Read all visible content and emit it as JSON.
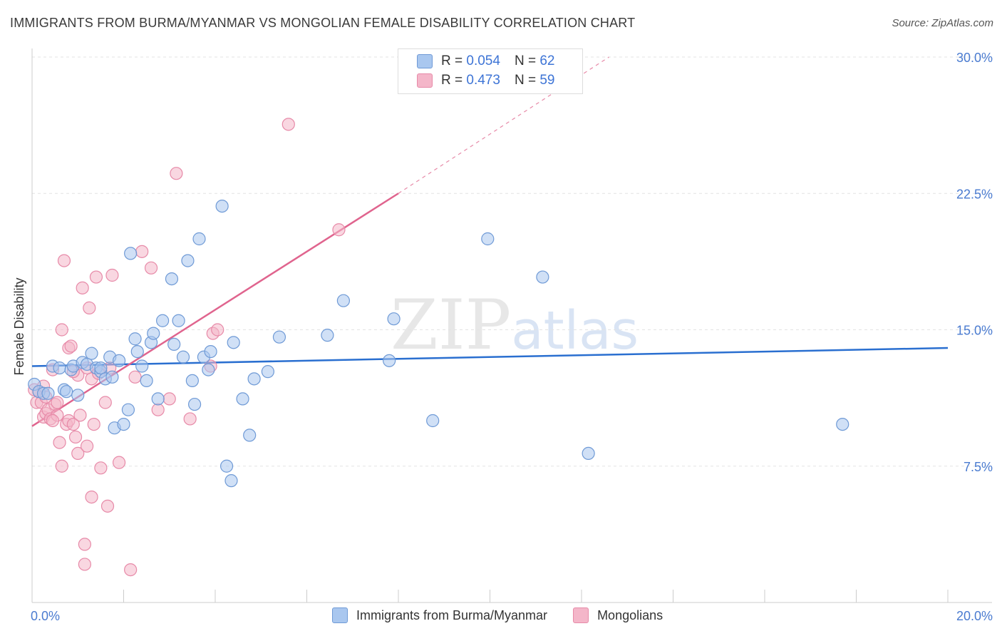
{
  "title": "IMMIGRANTS FROM BURMA/MYANMAR VS MONGOLIAN FEMALE DISABILITY CORRELATION CHART",
  "source": "Source: ZipAtlas.com",
  "watermark": {
    "zip": "ZIP",
    "atlas": "atlas"
  },
  "legend": {
    "rows": [
      {
        "r_label": "R = ",
        "r_value": "0.054",
        "n_label": "N = ",
        "n_value": "62"
      },
      {
        "r_label": "R = ",
        "r_value": "0.473",
        "n_label": "N = ",
        "n_value": "59"
      }
    ]
  },
  "bottom_legend": {
    "series1": "Immigrants from Burma/Myanmar",
    "series2": "Mongolians"
  },
  "colors": {
    "blue_fill": "#a9c7ef",
    "blue_stroke": "#6f9ad6",
    "blue_line": "#2a6fd0",
    "pink_fill": "#f4b6c9",
    "pink_stroke": "#e78aa8",
    "pink_line": "#e0648e",
    "grid": "#e3e3e3",
    "axis": "#cccccc"
  },
  "chart_data": {
    "type": "scatter",
    "title": "IMMIGRANTS FROM BURMA/MYANMAR VS MONGOLIAN FEMALE DISABILITY CORRELATION CHART",
    "xlabel": "",
    "ylabel": "Female Disability",
    "xlim": [
      0,
      20
    ],
    "ylim": [
      0,
      30
    ],
    "x_tick_labels": [
      "0.0%",
      "20.0%"
    ],
    "y_ticks": [
      7.5,
      15.0,
      22.5,
      30.0
    ],
    "y_tick_labels": [
      "7.5%",
      "15.0%",
      "22.5%",
      "30.0%"
    ],
    "series": [
      {
        "name": "Immigrants from Burma/Myanmar",
        "r": 0.054,
        "n": 62,
        "trend": {
          "x": [
            0,
            20
          ],
          "y": [
            13.0,
            14.0
          ],
          "style": "solid"
        },
        "points": [
          [
            0.05,
            12.0
          ],
          [
            0.15,
            11.6
          ],
          [
            0.25,
            11.5
          ],
          [
            0.35,
            11.5
          ],
          [
            0.45,
            13.0
          ],
          [
            0.6,
            12.9
          ],
          [
            0.7,
            11.7
          ],
          [
            0.75,
            11.6
          ],
          [
            0.85,
            12.8
          ],
          [
            0.9,
            13.0
          ],
          [
            1.0,
            11.4
          ],
          [
            1.1,
            13.2
          ],
          [
            1.2,
            13.1
          ],
          [
            1.3,
            13.7
          ],
          [
            1.4,
            12.9
          ],
          [
            1.5,
            12.7
          ],
          [
            1.5,
            12.9
          ],
          [
            1.6,
            12.3
          ],
          [
            1.7,
            13.5
          ],
          [
            1.75,
            12.4
          ],
          [
            1.8,
            9.6
          ],
          [
            1.9,
            13.3
          ],
          [
            2.0,
            9.8
          ],
          [
            2.1,
            10.6
          ],
          [
            2.15,
            19.2
          ],
          [
            2.25,
            14.5
          ],
          [
            2.3,
            13.8
          ],
          [
            2.4,
            13.0
          ],
          [
            2.5,
            12.2
          ],
          [
            2.6,
            14.3
          ],
          [
            2.65,
            14.8
          ],
          [
            2.75,
            11.2
          ],
          [
            2.85,
            15.5
          ],
          [
            3.05,
            17.8
          ],
          [
            3.1,
            14.2
          ],
          [
            3.2,
            15.5
          ],
          [
            3.3,
            13.5
          ],
          [
            3.4,
            18.8
          ],
          [
            3.5,
            12.2
          ],
          [
            3.55,
            10.9
          ],
          [
            3.65,
            20.0
          ],
          [
            3.75,
            13.5
          ],
          [
            3.85,
            12.8
          ],
          [
            3.9,
            13.8
          ],
          [
            4.15,
            21.8
          ],
          [
            4.25,
            7.5
          ],
          [
            4.35,
            6.7
          ],
          [
            4.4,
            14.3
          ],
          [
            4.6,
            11.2
          ],
          [
            4.75,
            9.2
          ],
          [
            4.85,
            12.3
          ],
          [
            5.15,
            12.7
          ],
          [
            5.4,
            14.6
          ],
          [
            6.45,
            14.7
          ],
          [
            6.8,
            16.6
          ],
          [
            7.8,
            13.3
          ],
          [
            7.9,
            15.6
          ],
          [
            8.75,
            10.0
          ],
          [
            9.95,
            20.0
          ],
          [
            11.15,
            17.9
          ],
          [
            12.15,
            8.2
          ],
          [
            17.7,
            9.8
          ]
        ]
      },
      {
        "name": "Mongolians",
        "r": 0.473,
        "n": 59,
        "trend": {
          "x": [
            0,
            8.0
          ],
          "y": [
            9.7,
            22.5
          ],
          "dashed_extension": {
            "x": [
              8.0,
              12.6
            ],
            "y": [
              22.5,
              30.0
            ]
          }
        },
        "points": [
          [
            0.05,
            11.7
          ],
          [
            0.1,
            11.0
          ],
          [
            0.15,
            11.6
          ],
          [
            0.2,
            11.0
          ],
          [
            0.25,
            10.2
          ],
          [
            0.3,
            10.4
          ],
          [
            0.35,
            10.6
          ],
          [
            0.4,
            10.1
          ],
          [
            0.45,
            12.8
          ],
          [
            0.5,
            10.9
          ],
          [
            0.55,
            10.3
          ],
          [
            0.6,
            8.8
          ],
          [
            0.65,
            7.5
          ],
          [
            0.65,
            15.0
          ],
          [
            0.7,
            18.8
          ],
          [
            0.75,
            9.8
          ],
          [
            0.8,
            10.0
          ],
          [
            0.8,
            14.0
          ],
          [
            0.85,
            14.1
          ],
          [
            0.9,
            9.8
          ],
          [
            0.95,
            9.1
          ],
          [
            1.0,
            12.5
          ],
          [
            1.0,
            8.2
          ],
          [
            1.05,
            10.3
          ],
          [
            1.1,
            17.3
          ],
          [
            1.15,
            3.2
          ],
          [
            1.15,
            2.1
          ],
          [
            1.2,
            8.6
          ],
          [
            1.25,
            16.2
          ],
          [
            1.3,
            12.3
          ],
          [
            1.3,
            5.8
          ],
          [
            1.35,
            9.8
          ],
          [
            1.4,
            17.9
          ],
          [
            1.45,
            12.6
          ],
          [
            1.5,
            7.4
          ],
          [
            1.6,
            11.0
          ],
          [
            1.65,
            5.3
          ],
          [
            1.7,
            12.9
          ],
          [
            1.75,
            18.0
          ],
          [
            1.9,
            7.7
          ],
          [
            2.15,
            1.8
          ],
          [
            2.25,
            12.4
          ],
          [
            2.4,
            19.3
          ],
          [
            2.6,
            18.4
          ],
          [
            2.75,
            10.6
          ],
          [
            3.0,
            11.2
          ],
          [
            3.15,
            23.6
          ],
          [
            3.45,
            10.1
          ],
          [
            3.9,
            13.0
          ],
          [
            3.95,
            14.8
          ],
          [
            4.05,
            15.0
          ],
          [
            5.6,
            26.3
          ],
          [
            6.7,
            20.5
          ],
          [
            0.3,
            11.3
          ],
          [
            0.45,
            10.0
          ],
          [
            0.55,
            11.0
          ],
          [
            0.9,
            12.7
          ],
          [
            1.2,
            12.9
          ],
          [
            0.25,
            11.9
          ]
        ]
      }
    ]
  }
}
